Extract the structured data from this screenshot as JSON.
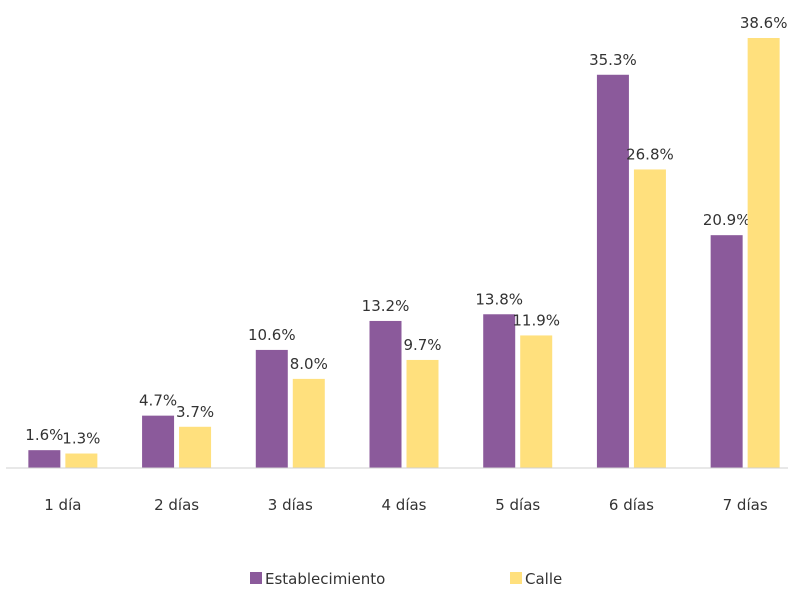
{
  "chart_data": {
    "type": "bar",
    "categories": [
      "1 día",
      "2 días",
      "3 días",
      "4 días",
      "5 días",
      "6 días",
      "7 días"
    ],
    "series": [
      {
        "name": "Establecimiento",
        "color": "#8b5a9b",
        "values": [
          1.6,
          4.7,
          10.6,
          13.2,
          13.8,
          35.3,
          20.9
        ],
        "value_labels": [
          "1.6%",
          "4.7%",
          "10.6%",
          "13.2%",
          "13.8%",
          "35.3%",
          "20.9%"
        ]
      },
      {
        "name": "Calle",
        "color": "#ffe07d",
        "values": [
          1.3,
          3.7,
          8.0,
          9.7,
          11.9,
          26.8,
          38.6
        ],
        "value_labels": [
          "1.3%",
          "3.7%",
          "8.0%",
          "9.7%",
          "11.9%",
          "26.8%",
          "38.6%"
        ]
      }
    ],
    "legend": "bottom"
  }
}
